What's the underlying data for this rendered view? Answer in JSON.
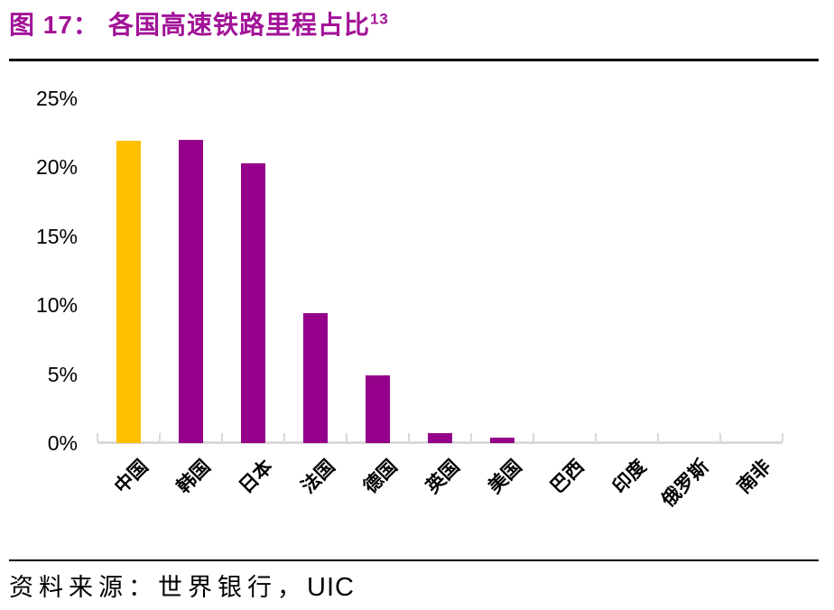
{
  "header": {
    "title_prefix": "图 17：",
    "title_main": "各国高速铁路里程占比",
    "title_superscript": "13",
    "title_color": "#A21397"
  },
  "chart_data": {
    "type": "bar",
    "title": "图 17：各国高速铁路里程占比",
    "footnote_marker": "13",
    "categories": [
      "中国",
      "韩国",
      "日本",
      "法国",
      "德国",
      "英国",
      "美国",
      "巴西",
      "印度",
      "俄罗斯",
      "南非"
    ],
    "values": [
      21.9,
      22.0,
      20.3,
      9.4,
      4.9,
      0.7,
      0.4,
      0,
      0,
      0,
      0
    ],
    "unit": "%",
    "xlabel": "",
    "ylabel": "",
    "ylim": [
      0,
      25
    ],
    "ytick_step": 5,
    "ytick_labels": [
      "0%",
      "5%",
      "10%",
      "15%",
      "20%",
      "25%"
    ],
    "grid": false,
    "legend": null,
    "highlight_index": 0,
    "colors": {
      "highlight_bar": "#FFC000",
      "default_bar": "#94008A",
      "axis_line": "#D9D9D9",
      "tick": "#D9D9D9",
      "label_text": "#000000"
    }
  },
  "footer": {
    "source_prefix": "资料来源：世界银行，",
    "source_org": "UIC"
  }
}
